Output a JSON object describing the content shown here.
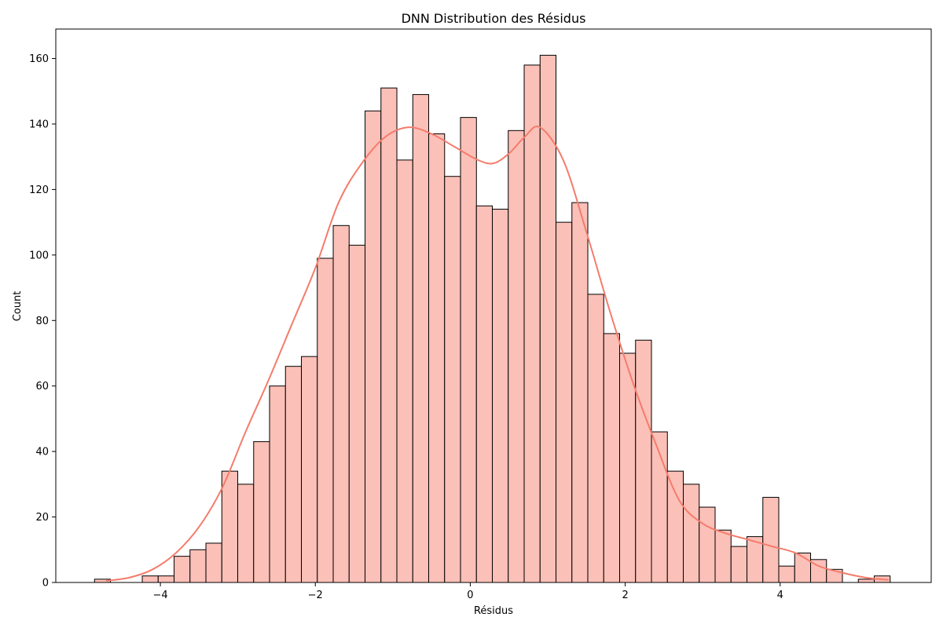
{
  "chart_data": {
    "type": "bar",
    "title": "DNN Distribution des Résidus",
    "xlabel": "Résidus",
    "ylabel": "Count",
    "xlim": [
      -5.35,
      5.95
    ],
    "ylim": [
      0,
      169
    ],
    "x_ticks": [
      -4,
      -2,
      0,
      2,
      4
    ],
    "y_ticks": [
      0,
      20,
      40,
      60,
      80,
      100,
      120,
      140,
      160
    ],
    "bin_start": -4.85,
    "bin_width": 0.2054,
    "values": [
      1,
      0,
      0,
      2,
      2,
      8,
      10,
      12,
      34,
      30,
      43,
      60,
      66,
      69,
      99,
      109,
      103,
      144,
      151,
      129,
      149,
      137,
      124,
      142,
      115,
      114,
      138,
      158,
      161,
      110,
      116,
      88,
      76,
      70,
      74,
      46,
      34,
      30,
      23,
      16,
      11,
      14,
      26,
      5,
      9,
      7,
      4,
      0,
      1,
      2
    ],
    "kde": {
      "x": [
        -4.7,
        -4.4,
        -4.1,
        -3.8,
        -3.5,
        -3.2,
        -2.9,
        -2.6,
        -2.3,
        -2.0,
        -1.7,
        -1.4,
        -1.1,
        -0.8,
        -0.5,
        -0.2,
        0.1,
        0.3,
        0.5,
        0.7,
        0.9,
        1.2,
        1.5,
        1.8,
        2.1,
        2.4,
        2.7,
        3.0,
        3.3,
        3.6,
        3.9,
        4.2,
        4.5,
        4.8,
        5.1,
        5.4
      ],
      "y": [
        0.5,
        1.5,
        4,
        9,
        17,
        29,
        46,
        62,
        79,
        96,
        116,
        128,
        136,
        139,
        137,
        133,
        129,
        128,
        131,
        136,
        139,
        129,
        107,
        83,
        61,
        42,
        25,
        18,
        15,
        13,
        11,
        9,
        5,
        3,
        1.5,
        0.8
      ]
    },
    "bar_color": "#fbc0b8",
    "bar_edge_color": "#000000",
    "kde_color": "#f47c6c",
    "grid": false,
    "legend": "none"
  }
}
